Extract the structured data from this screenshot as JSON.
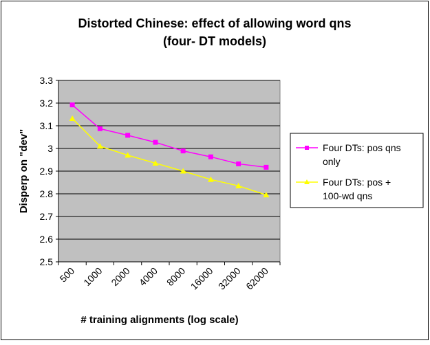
{
  "chart_data": {
    "type": "line",
    "title_lines": [
      "Distorted Chinese: effect of allowing word qns",
      "(four- DT models)"
    ],
    "xlabel": "# training alignments (log scale)",
    "ylabel": "Disperp on \"dev\"",
    "categories": [
      "500",
      "1000",
      "2000",
      "4000",
      "8000",
      "16000",
      "32000",
      "62000"
    ],
    "yticks": [
      "2.5",
      "2.6",
      "2.7",
      "2.8",
      "2.9",
      "3",
      "3.1",
      "3.2",
      "3.3"
    ],
    "ylim": [
      2.5,
      3.3
    ],
    "grid": "horizontal",
    "legend_position": "right",
    "series": [
      {
        "name_lines": [
          "Four DTs: pos qns",
          "only"
        ],
        "color": "#ff00ff",
        "marker": "square",
        "values": [
          3.192,
          3.087,
          3.058,
          3.027,
          2.989,
          2.963,
          2.932,
          2.917
        ]
      },
      {
        "name_lines": [
          "Four DTs: pos +",
          "100-wd qns"
        ],
        "color": "#ffff00",
        "marker": "triangle",
        "values": [
          3.132,
          3.01,
          2.97,
          2.935,
          2.9,
          2.863,
          2.835,
          2.795
        ]
      }
    ]
  }
}
